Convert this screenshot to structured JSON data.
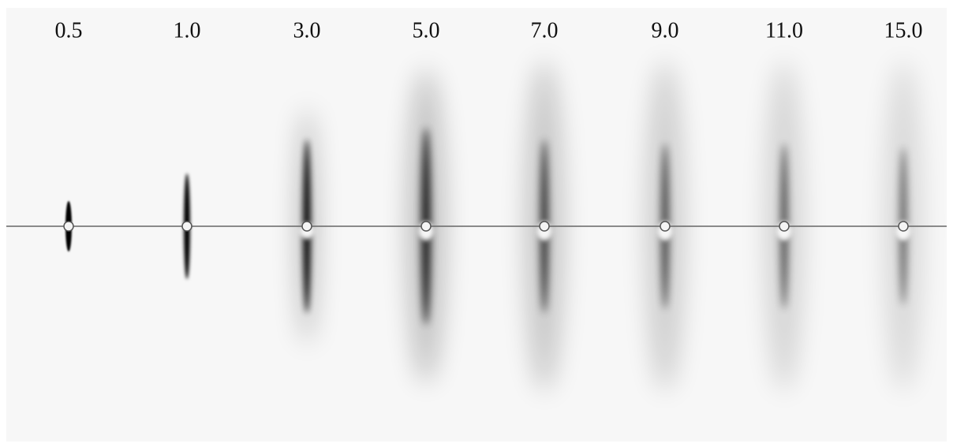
{
  "labels": [
    "0.5",
    "1.0",
    "3.0",
    "5.0",
    "7.0",
    "9.0",
    "11.0",
    "15.0"
  ]
}
